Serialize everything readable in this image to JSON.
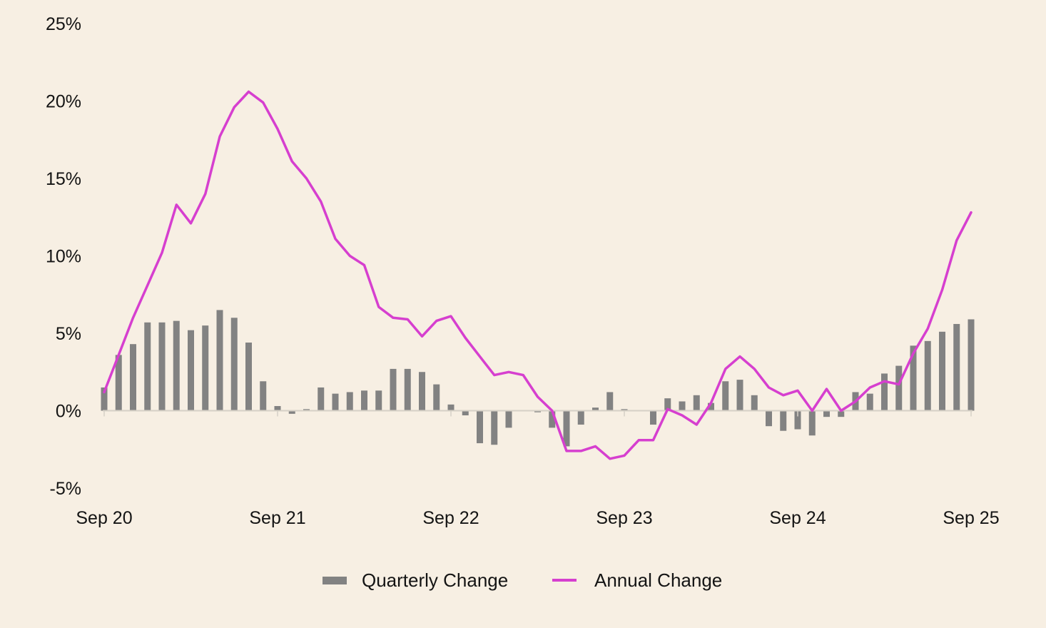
{
  "chart_data": {
    "type": "bar",
    "x_ticks": [
      "Sep 20",
      "Sep 21",
      "Sep 22",
      "Sep 23",
      "Sep 24",
      "Sep 25"
    ],
    "y_ticks": [
      "25%",
      "20%",
      "15%",
      "10%",
      "5%",
      "0%",
      "-5%"
    ],
    "ylim": [
      -5,
      25
    ],
    "grid": false,
    "legend_position": "bottom-center",
    "colors": {
      "quarterly": "#828282",
      "annual": "#d63fcf",
      "background": "#f7efe3",
      "axis": "#d6d0c6"
    },
    "series": [
      {
        "name": "Quarterly Change",
        "type": "bar",
        "values": [
          1.5,
          3.6,
          4.3,
          5.7,
          5.7,
          5.8,
          5.2,
          5.5,
          6.5,
          6.0,
          4.4,
          1.9,
          0.3,
          -0.2,
          0.1,
          1.5,
          1.1,
          1.2,
          1.3,
          1.3,
          2.7,
          2.7,
          2.5,
          1.7,
          0.4,
          -0.3,
          -2.1,
          -2.2,
          -1.1,
          0.0,
          -0.1,
          -1.1,
          -2.3,
          -0.9,
          0.2,
          1.2,
          0.1,
          0.0,
          -0.9,
          0.8,
          0.6,
          1.0,
          0.5,
          1.9,
          2.0,
          1.0,
          -1.0,
          -1.3,
          -1.2,
          -1.6,
          -0.4,
          -0.4,
          1.2,
          1.1,
          2.4,
          2.9,
          4.2,
          4.5,
          5.1,
          5.6,
          5.9
        ]
      },
      {
        "name": "Annual Change",
        "type": "line",
        "values": [
          1.2,
          3.6,
          6.0,
          8.1,
          10.2,
          13.3,
          12.1,
          14.0,
          17.7,
          19.6,
          20.6,
          19.9,
          18.2,
          16.1,
          15.0,
          13.5,
          11.1,
          10.0,
          9.4,
          6.7,
          6.0,
          5.9,
          4.8,
          5.8,
          6.1,
          4.7,
          3.5,
          2.3,
          2.5,
          2.3,
          0.9,
          0.0,
          -2.6,
          -2.6,
          -2.3,
          -3.1,
          -2.9,
          -1.9,
          -1.9,
          0.1,
          -0.3,
          -0.9,
          0.5,
          2.7,
          3.5,
          2.7,
          1.5,
          1.0,
          1.3,
          0.0,
          1.4,
          0.0,
          0.6,
          1.5,
          1.9,
          1.7,
          3.7,
          5.3,
          7.8,
          11.0,
          12.8
        ]
      }
    ]
  }
}
